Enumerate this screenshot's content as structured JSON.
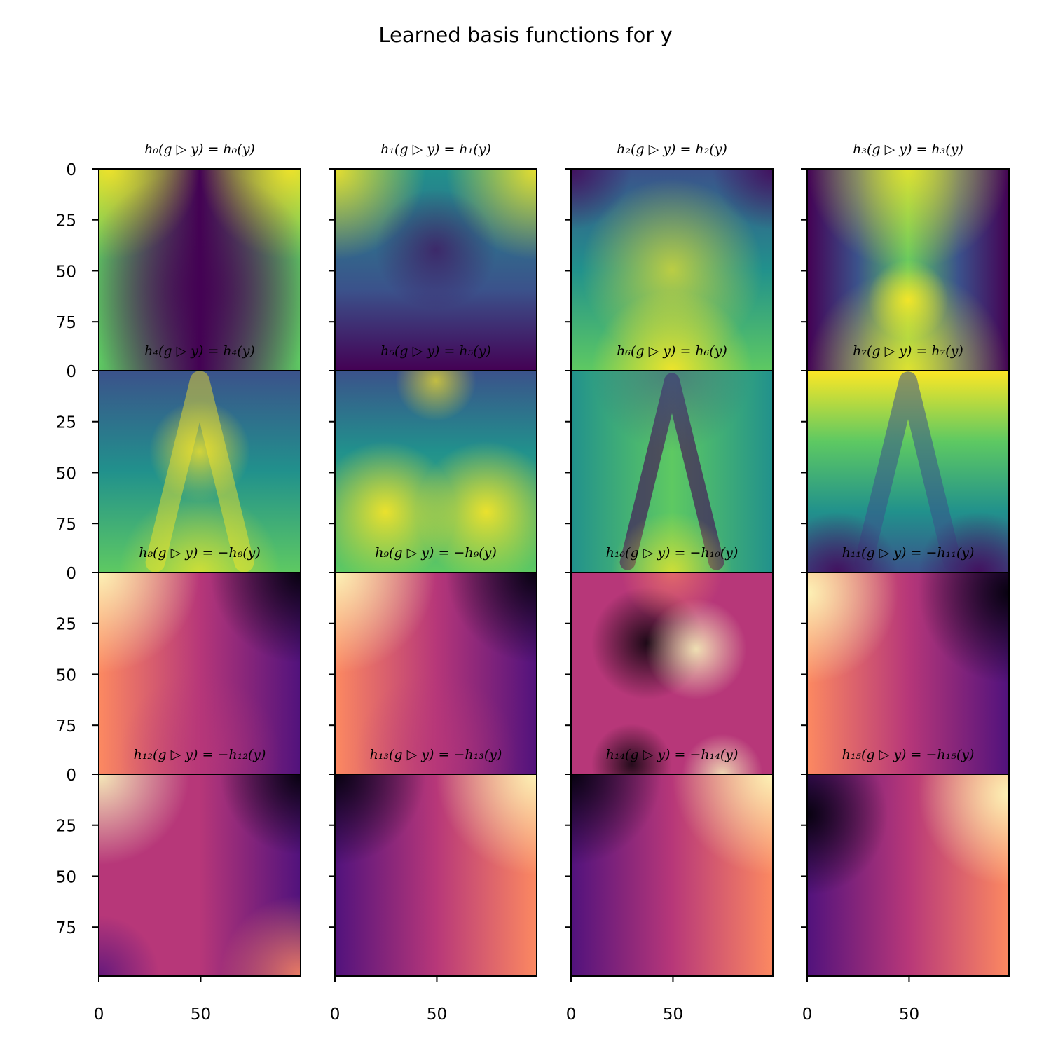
{
  "chart_data": {
    "type": "heatmap",
    "title": "Learned basis functions for y",
    "grid": "off",
    "layout": {
      "rows": 4,
      "cols": 4
    },
    "xlim": [
      0,
      99
    ],
    "ylim": [
      99,
      0
    ],
    "xticks": [
      0,
      50
    ],
    "yticks": [
      0,
      25,
      50,
      75
    ],
    "xtick_labels": [
      "0",
      "50"
    ],
    "ytick_labels": [
      "0",
      "25",
      "50",
      "75"
    ],
    "colormaps": {
      "invariant": "viridis",
      "sign_flip": "magma"
    },
    "panels": [
      {
        "title": "h₀(g ▷ y) = h₀(y)",
        "cmap": "viridis",
        "pattern": "edges-high-center-low-v"
      },
      {
        "title": "h₁(g ▷ y) = h₁(y)",
        "cmap": "viridis",
        "pattern": "top-corners-high-bottom-low"
      },
      {
        "title": "h₂(g ▷ y) = h₂(y)",
        "cmap": "viridis",
        "pattern": "center-v-high-bottom-high"
      },
      {
        "title": "h₃(g ▷ y) = h₃(y)",
        "cmap": "viridis",
        "pattern": "x-shape-high-sides-low"
      },
      {
        "title": "h₄(g ▷ y) = h₄(y)",
        "cmap": "viridis",
        "pattern": "central-v-bright"
      },
      {
        "title": "h₅(g ▷ y) = h₅(y)",
        "cmap": "viridis",
        "pattern": "lower-lobes-bright"
      },
      {
        "title": "h₆(g ▷ y) = h₆(y)",
        "cmap": "viridis",
        "pattern": "dark-v-on-green"
      },
      {
        "title": "h₇(g ▷ y) = h₇(y)",
        "cmap": "viridis",
        "pattern": "top-bright-bottom-dark-v"
      },
      {
        "title": "h₈(g ▷ y) = −h₈(y)",
        "cmap": "magma",
        "pattern": "topleft-bright-topright-dark"
      },
      {
        "title": "h₉(g ▷ y) = −h₉(y)",
        "cmap": "magma",
        "pattern": "topleft-bright-topright-dark"
      },
      {
        "title": "h₁₀(g ▷ y) = −h₁₀(y)",
        "cmap": "magma",
        "pattern": "center-dark-right-bright-blobs"
      },
      {
        "title": "h₁₁(g ▷ y) = −h₁₁(y)",
        "cmap": "magma",
        "pattern": "left-bright-right-dark"
      },
      {
        "title": "h₁₂(g ▷ y) = −h₁₂(y)",
        "cmap": "magma",
        "pattern": "topleft-and-bottomright-bright"
      },
      {
        "title": "h₁₃(g ▷ y) = −h₁₃(y)",
        "cmap": "magma",
        "pattern": "topleft-dark-topright-bright"
      },
      {
        "title": "h₁₄(g ▷ y) = −h₁₄(y)",
        "cmap": "magma",
        "pattern": "topleft-dark-topright-bright"
      },
      {
        "title": "h₁₅(g ▷ y) = −h₁₅(y)",
        "cmap": "magma",
        "pattern": "left-dark-right-bright"
      }
    ]
  }
}
